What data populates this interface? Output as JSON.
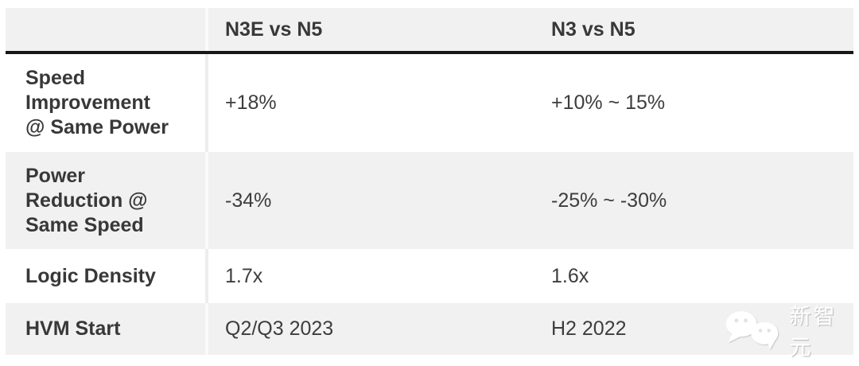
{
  "chart_data": {
    "type": "table",
    "columns": [
      "",
      "N3E vs N5",
      "N3 vs N5"
    ],
    "rows": [
      {
        "metric": "Speed Improvement @ Same Power",
        "metric_lines": [
          "Speed",
          "Improvement",
          "@ Same Power"
        ],
        "n3e_vs_n5": "+18%",
        "n3_vs_n5": "+10% ~ 15%"
      },
      {
        "metric": "Power Reduction @ Same Speed",
        "metric_lines": [
          "Power",
          "Reduction @",
          "Same Speed"
        ],
        "n3e_vs_n5": "-34%",
        "n3_vs_n5": "-25% ~ -30%"
      },
      {
        "metric": "Logic Density",
        "metric_lines": [
          "Logic Density"
        ],
        "n3e_vs_n5": "1.7x",
        "n3_vs_n5": "1.6x"
      },
      {
        "metric": "HVM Start",
        "metric_lines": [
          "HVM Start"
        ],
        "n3e_vs_n5": "Q2/Q3 2023",
        "n3_vs_n5": "H2 2022"
      }
    ],
    "layout": {
      "stripe_color": "#f1f1f1",
      "header_divider_color": "#161616",
      "text_color": "#3b3b3b",
      "background": "#ffffff"
    }
  },
  "watermark": {
    "brand": "新智元",
    "icon": "wechat-logo"
  }
}
